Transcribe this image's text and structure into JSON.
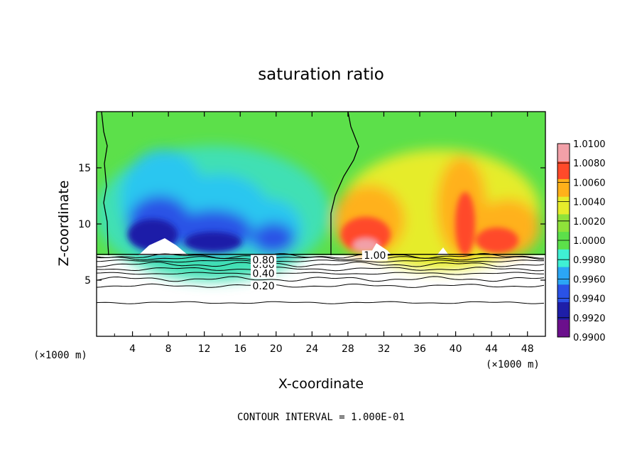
{
  "chart_data": {
    "type": "heatmap",
    "title": "saturation ratio",
    "xlabel": "X-coordinate",
    "ylabel": "Z-coordinate",
    "x_unit": "(×1000 m)",
    "x_unit_right": "(×1000 m)",
    "xlim": [
      0,
      50
    ],
    "ylim": [
      0,
      20
    ],
    "xticks": [
      "4",
      "8",
      "12",
      "16",
      "20",
      "24",
      "28",
      "32",
      "36",
      "40",
      "44",
      "48"
    ],
    "xtick_values": [
      4,
      8,
      12,
      16,
      20,
      24,
      28,
      32,
      36,
      40,
      44,
      48
    ],
    "yticks": [
      "5",
      "10",
      "15"
    ],
    "ytick_values": [
      5,
      10,
      15
    ],
    "footer": "CONTOUR INTERVAL = 1.000E-01",
    "colorbar": {
      "labels": [
        "1.0100",
        "1.0080",
        "1.0060",
        "1.0040",
        "1.0020",
        "1.0000",
        "0.9980",
        "0.9960",
        "0.9940",
        "0.9920",
        "0.9900"
      ],
      "min": 0.99,
      "max": 1.01,
      "colors": [
        "#6b0f8c",
        "#1e1ea8",
        "#2a52e6",
        "#2ba6f5",
        "#3ff0d4",
        "#5ce04a",
        "#8fe23a",
        "#e6ec2b",
        "#ffb11a",
        "#ff4a2a",
        "#f2a0a8"
      ]
    },
    "surface_z": 7.3,
    "contours": [
      {
        "value": 0.2,
        "label": "0.20",
        "z": 4.5
      },
      {
        "value": 0.4,
        "label": "0.40",
        "z": 5.6
      },
      {
        "value": 0.6,
        "label": "0.60",
        "z": 6.4
      },
      {
        "value": 0.8,
        "label": "0.80",
        "z": 6.8
      },
      {
        "value": 1.0,
        "label": "1.00",
        "z": 7.2
      }
    ],
    "regions": [
      {
        "kind": "subsaturated",
        "x": [
          3,
          25
        ],
        "z_top": 16,
        "min": 0.991
      },
      {
        "kind": "supersaturated",
        "x": [
          28,
          48
        ],
        "z_top": 17,
        "max": 1.008
      }
    ]
  }
}
